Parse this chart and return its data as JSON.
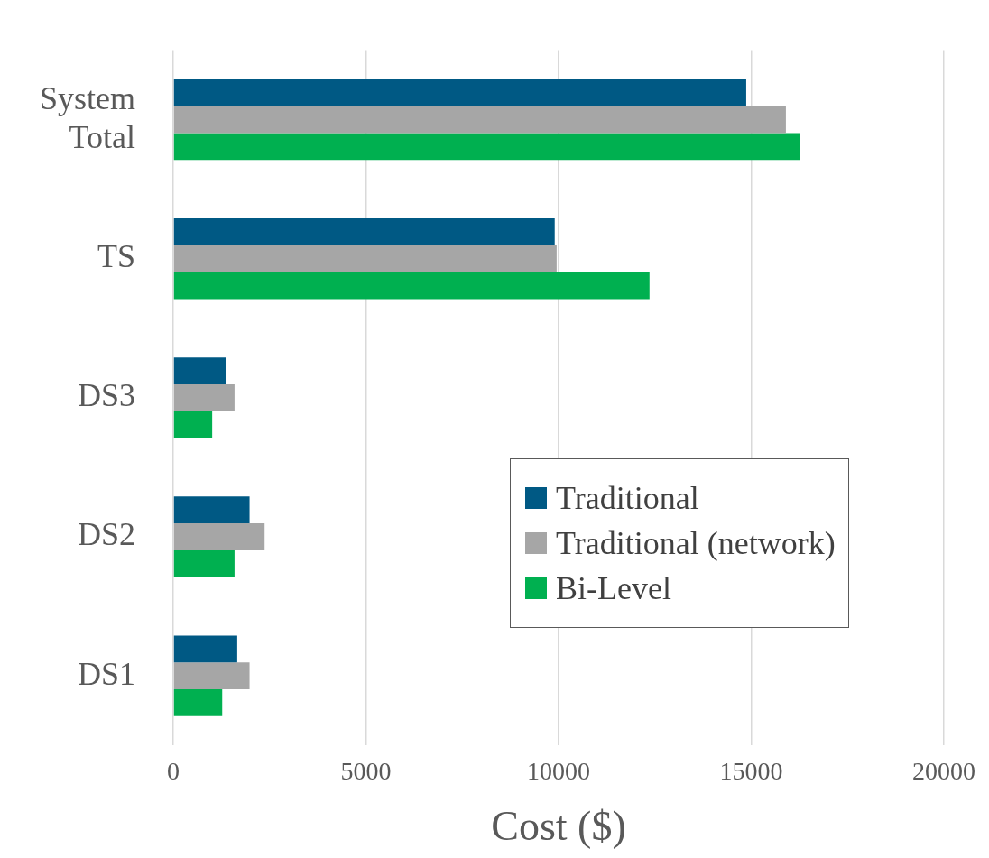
{
  "chart_data": {
    "type": "bar",
    "orientation": "horizontal",
    "xlabel": "Cost ($)",
    "categories": [
      "System Total",
      "TS",
      "DS3",
      "DS2",
      "DS1"
    ],
    "series": [
      {
        "name": "Traditional",
        "color": "#005984",
        "values": [
          14870,
          9900,
          1360,
          1980,
          1660
        ]
      },
      {
        "name": "Traditional (network)",
        "color": "#a6a6a6",
        "values": [
          15900,
          9950,
          1590,
          2370,
          1980
        ]
      },
      {
        "name": "Bi-Level",
        "color": "#00b050",
        "values": [
          16270,
          12360,
          1010,
          1590,
          1270
        ]
      }
    ],
    "xlim": [
      0,
      20000
    ],
    "xticks": [
      0,
      5000,
      10000,
      15000,
      20000
    ],
    "grid": "x",
    "legend": "bottom right"
  }
}
